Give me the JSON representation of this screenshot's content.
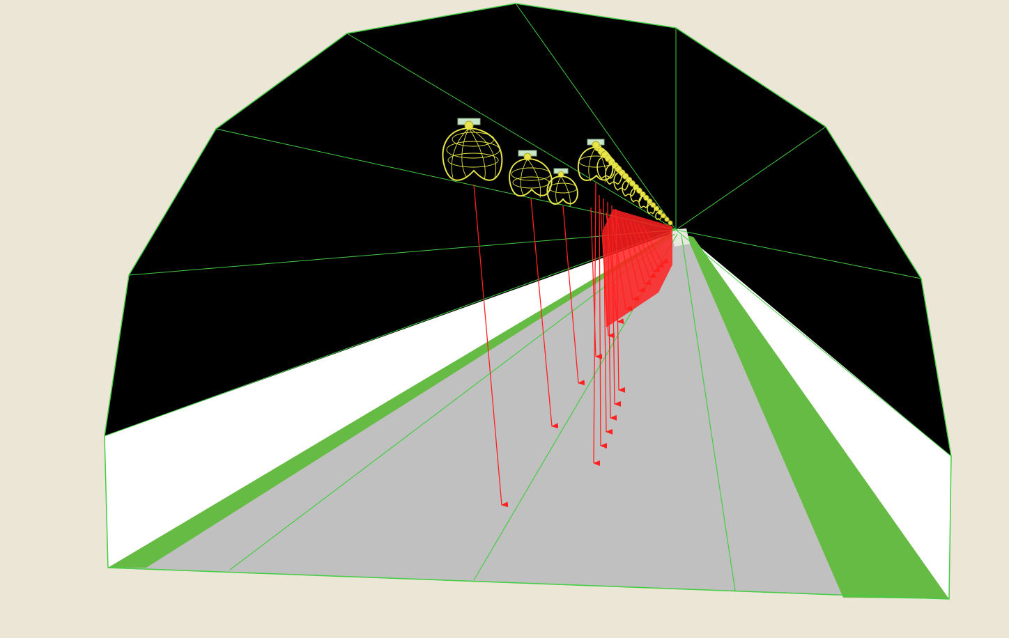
{
  "scene": {
    "type": "tunnel-lighting-3d-view",
    "background_color": "#ece6d6",
    "ceiling_color": "#000000",
    "wall_color": "#ffffff",
    "road_color": "#c0c0c0",
    "curb_color": "#66bb44",
    "edge_line_color": "#44cc44",
    "luminaire_color": "#e6e64a",
    "luminaire_housing_color": "#c8e6c8",
    "light_ray_color": "#ff2020",
    "luminaire_count_visible": 4,
    "lane_count": 3
  }
}
